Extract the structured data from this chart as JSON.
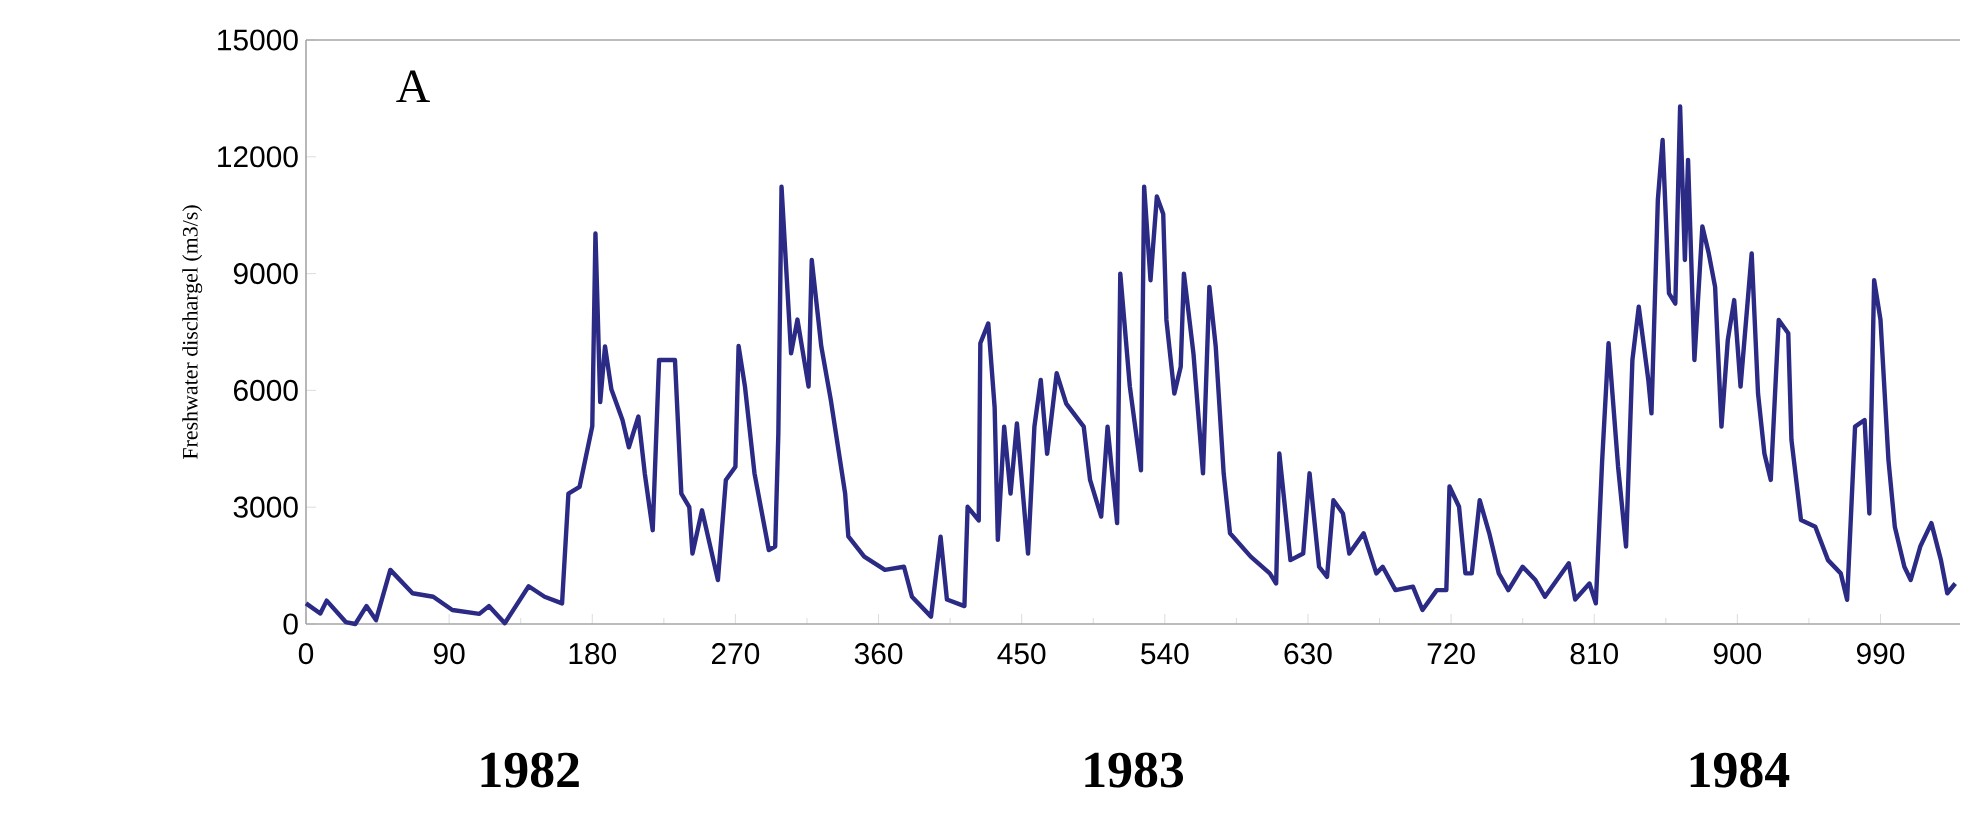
{
  "chart_data": {
    "type": "line",
    "title": "A",
    "ylabel": "Freshwater dischargel (m3/s)",
    "annotations": [
      "1982",
      "1983",
      "1984"
    ],
    "xlim": [
      0,
      1040
    ],
    "xticks": [
      0,
      90,
      180,
      270,
      360,
      450,
      540,
      630,
      720,
      810,
      900,
      990
    ],
    "ylim": [
      0,
      15000
    ],
    "yticks": [
      0,
      3000,
      6000,
      9000,
      12000,
      15000
    ],
    "grid": false,
    "marker": "none",
    "line_style": "solid",
    "series": [
      {
        "color": "#2b2a85",
        "x": [
          0,
          9,
          13,
          25,
          31,
          38,
          44,
          53,
          67,
          80,
          92,
          109,
          115,
          125,
          140,
          150,
          161,
          165,
          172,
          180,
          182,
          185,
          188,
          192,
          199,
          203,
          209,
          213,
          218,
          222,
          232,
          236,
          241,
          243,
          249,
          259,
          264,
          270,
          272,
          276,
          282,
          291,
          295,
          297,
          299,
          305,
          309,
          316,
          318,
          324,
          330,
          339,
          341,
          351,
          364,
          376,
          381,
          393,
          399,
          403,
          414,
          416,
          423,
          424,
          429,
          433,
          435,
          439,
          443,
          447,
          454,
          458,
          462,
          466,
          472,
          478,
          489,
          493,
          500,
          504,
          510,
          512,
          518,
          525,
          527,
          531,
          535,
          539,
          541,
          546,
          550,
          552,
          558,
          562,
          564,
          568,
          572,
          577,
          581,
          594,
          606,
          610,
          612,
          619,
          627,
          631,
          637,
          642,
          646,
          652,
          656,
          665,
          673,
          677,
          685,
          696,
          702,
          711,
          717,
          719,
          725,
          729,
          733,
          738,
          744,
          750,
          756,
          765,
          773,
          779,
          794,
          798,
          807,
          811,
          815,
          819,
          825,
          830,
          834,
          838,
          844,
          846,
          850,
          853,
          857,
          861,
          864,
          867,
          869,
          873,
          878,
          882,
          886,
          890,
          894,
          898,
          902,
          909,
          913,
          917,
          921,
          926,
          932,
          934,
          940,
          949,
          957,
          965,
          969,
          974,
          980,
          983,
          986,
          990,
          995,
          999,
          1005,
          1009,
          1015,
          1022,
          1028,
          1032,
          1037
        ],
        "values": [
          530,
          270,
          600,
          50,
          0,
          460,
          100,
          1390,
          790,
          700,
          360,
          260,
          460,
          20,
          970,
          700,
          530,
          3350,
          3520,
          5080,
          10030,
          5700,
          7130,
          6030,
          5240,
          4540,
          5330,
          3870,
          2410,
          6780,
          6780,
          3350,
          3000,
          1810,
          2920,
          1130,
          3700,
          4040,
          7140,
          6100,
          3870,
          1900,
          1990,
          4900,
          11230,
          6950,
          7820,
          6100,
          9350,
          7130,
          5750,
          3350,
          2250,
          1730,
          1390,
          1470,
          700,
          190,
          2240,
          630,
          460,
          3010,
          2660,
          7210,
          7720,
          5560,
          2160,
          5070,
          3350,
          5150,
          1810,
          5070,
          6270,
          4370,
          6440,
          5660,
          5070,
          3700,
          2760,
          5070,
          2590,
          9000,
          6100,
          3950,
          11230,
          8830,
          10980,
          10530,
          7810,
          5920,
          6610,
          9000,
          6950,
          4900,
          3870,
          8660,
          7130,
          3870,
          2330,
          1730,
          1300,
          1040,
          4380,
          1640,
          1810,
          3870,
          1470,
          1210,
          3180,
          2840,
          1810,
          2330,
          1300,
          1470,
          870,
          960,
          360,
          870,
          870,
          3530,
          3010,
          1300,
          1300,
          3180,
          2330,
          1300,
          870,
          1470,
          1130,
          700,
          1560,
          630,
          1040,
          530,
          4210,
          7210,
          4040,
          1990,
          6780,
          8150,
          6270,
          5410,
          10890,
          12430,
          8490,
          8230,
          13290,
          9350,
          11920,
          6780,
          10210,
          9520,
          8660,
          5070,
          7300,
          8320,
          6100,
          9520,
          5920,
          4380,
          3700,
          7810,
          7470,
          4730,
          2670,
          2500,
          1640,
          1300,
          620,
          5070,
          5240,
          2840,
          8830,
          7810,
          4210,
          2500,
          1470,
          1130,
          1990,
          2590,
          1640,
          790,
          1040
        ]
      }
    ]
  }
}
